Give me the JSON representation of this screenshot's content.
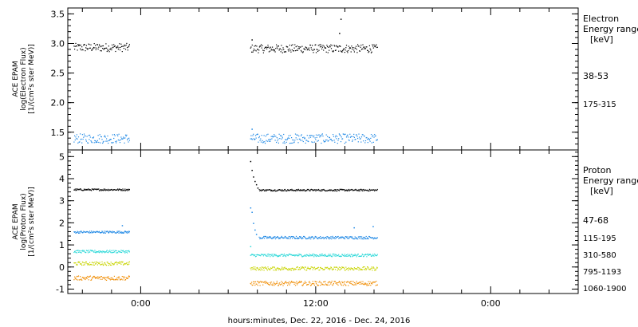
{
  "chart_data": [
    {
      "type": "scatter",
      "panel": "electron",
      "ylabel_lines": [
        "ACE EPAM",
        "log(Electron Flux)",
        "[1/(cm²s ster MeV)]"
      ],
      "ylim": [
        1.2,
        3.6
      ],
      "yticks": [
        1.5,
        2.0,
        2.5,
        3.0,
        3.5
      ],
      "ytick_labels": [
        "1.5",
        "2.0",
        "2.5",
        "3.0",
        "3.5"
      ],
      "legend_title_lines": [
        "Electron",
        "Energy range",
        "[keV]"
      ],
      "series": [
        {
          "name": "38-53",
          "color": "#000000",
          "segments": [
            {
              "x": [
                -4.6,
                -0.8
              ],
              "y_mean": 2.94,
              "y_jitter": 0.07
            },
            {
              "x": [
                7.5,
                16.2
              ],
              "y_mean": 2.92,
              "y_jitter": 0.07
            }
          ],
          "outliers": [
            {
              "x": 13.7,
              "y": 3.42
            },
            {
              "x": 13.6,
              "y": 3.18
            },
            {
              "x": 7.6,
              "y": 3.07
            }
          ]
        },
        {
          "name": "175-315",
          "color": "#1e88e5",
          "segments": [
            {
              "x": [
                -4.6,
                -0.8
              ],
              "y_mean": 1.4,
              "y_jitter": 0.08
            },
            {
              "x": [
                7.5,
                16.2
              ],
              "y_mean": 1.4,
              "y_jitter": 0.08
            }
          ],
          "outliers": [
            {
              "x": 7.6,
              "y": 1.56
            }
          ]
        }
      ]
    },
    {
      "type": "scatter",
      "panel": "proton",
      "ylabel_lines": [
        "ACE EPAM",
        "log(Proton Flux)",
        "[1/(cm²s ster MeV)]"
      ],
      "ylim": [
        -1.2,
        5.3
      ],
      "yticks": [
        -1,
        0,
        1,
        2,
        3,
        4,
        5
      ],
      "ytick_labels": [
        "-1",
        "0",
        "1",
        "2",
        "3",
        "4",
        "5"
      ],
      "legend_title_lines": [
        "Proton",
        "Energy range",
        "[keV]"
      ],
      "series": [
        {
          "name": "47-68",
          "color": "#000000",
          "segments": [
            {
              "x": [
                -4.6,
                -0.8
              ],
              "y_mean": 3.52,
              "y_jitter": 0.04
            },
            {
              "x": [
                8.1,
                16.2
              ],
              "y_mean": 3.5,
              "y_jitter": 0.04
            }
          ],
          "outliers": [
            {
              "x": 7.5,
              "y": 4.8
            },
            {
              "x": 7.6,
              "y": 4.4
            },
            {
              "x": 7.7,
              "y": 4.1
            },
            {
              "x": 7.8,
              "y": 3.9
            },
            {
              "x": 7.9,
              "y": 3.75
            },
            {
              "x": 8.0,
              "y": 3.6
            }
          ]
        },
        {
          "name": "115-195",
          "color": "#1e88e5",
          "segments": [
            {
              "x": [
                -4.6,
                -0.8
              ],
              "y_mean": 1.6,
              "y_jitter": 0.05
            },
            {
              "x": [
                8.1,
                16.2
              ],
              "y_mean": 1.35,
              "y_jitter": 0.06
            }
          ],
          "outliers": [
            {
              "x": 7.5,
              "y": 2.7
            },
            {
              "x": 7.6,
              "y": 2.5
            },
            {
              "x": 7.7,
              "y": 2.0
            },
            {
              "x": 7.8,
              "y": 1.7
            },
            {
              "x": 7.9,
              "y": 1.5
            },
            {
              "x": 15.9,
              "y": 1.85
            },
            {
              "x": 14.6,
              "y": 1.8
            },
            {
              "x": -1.3,
              "y": 1.9
            }
          ]
        },
        {
          "name": "310-580",
          "color": "#26d7d7",
          "segments": [
            {
              "x": [
                -4.6,
                -0.8
              ],
              "y_mean": 0.72,
              "y_jitter": 0.06
            },
            {
              "x": [
                7.5,
                16.2
              ],
              "y_mean": 0.55,
              "y_jitter": 0.06
            }
          ],
          "outliers": [
            {
              "x": 7.5,
              "y": 0.95
            }
          ]
        },
        {
          "name": "795-1193",
          "color": "#c8d400",
          "segments": [
            {
              "x": [
                -4.6,
                -0.8
              ],
              "y_mean": 0.18,
              "y_jitter": 0.08
            },
            {
              "x": [
                7.5,
                16.2
              ],
              "y_mean": -0.05,
              "y_jitter": 0.08
            }
          ],
          "outliers": []
        },
        {
          "name": "1060-1900",
          "color": "#f08c00",
          "segments": [
            {
              "x": [
                -4.6,
                -0.8
              ],
              "y_mean": -0.48,
              "y_jitter": 0.1
            },
            {
              "x": [
                7.5,
                16.2
              ],
              "y_mean": -0.72,
              "y_jitter": 0.1
            }
          ],
          "outliers": []
        }
      ]
    }
  ],
  "x_axis": {
    "units": "hours relative to 00:00",
    "xlim": [
      -5.0,
      30.0
    ],
    "major_ticks": [
      0,
      12,
      24
    ],
    "major_tick_labels": [
      "0:00",
      "12:00",
      "0:00"
    ],
    "minor_step": 2,
    "xlabel": "hours:minutes, Dec. 22, 2016 - Dec. 24, 2016"
  }
}
